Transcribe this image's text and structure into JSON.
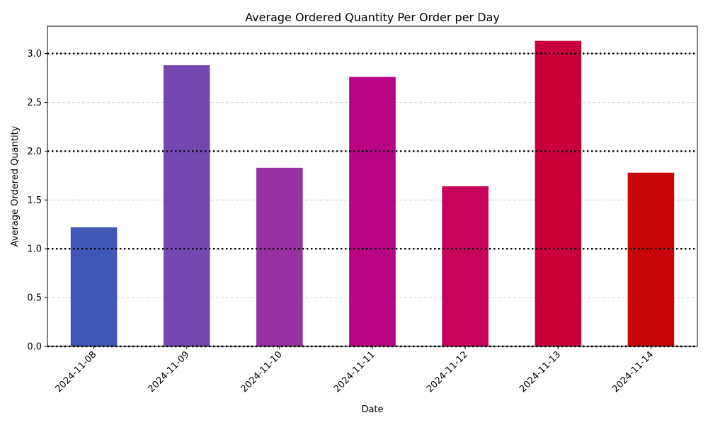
{
  "chart_data": {
    "type": "bar",
    "title": "Average Ordered Quantity Per Order per Day",
    "xlabel": "Date",
    "ylabel": "Average Ordered Quantity",
    "categories": [
      "2024-11-08",
      "2024-11-09",
      "2024-11-10",
      "2024-11-11",
      "2024-11-12",
      "2024-11-13",
      "2024-11-14"
    ],
    "values": [
      1.22,
      2.88,
      1.83,
      2.76,
      1.64,
      3.13,
      1.78
    ],
    "bar_colors": [
      "#3f58b8",
      "#7349b1",
      "#9831a1",
      "#b50384",
      "#c60259",
      "#c9003a",
      "#c60608"
    ],
    "ylim": [
      0,
      3.28
    ],
    "yticks": [
      0.0,
      0.5,
      1.0,
      1.5,
      2.0,
      2.5,
      3.0
    ],
    "ytick_labels": [
      "0.0",
      "0.5",
      "1.0",
      "1.5",
      "2.0",
      "2.5",
      "3.0"
    ],
    "reference_lines": [
      0,
      1,
      2,
      3
    ],
    "grid": "y-dashed"
  }
}
